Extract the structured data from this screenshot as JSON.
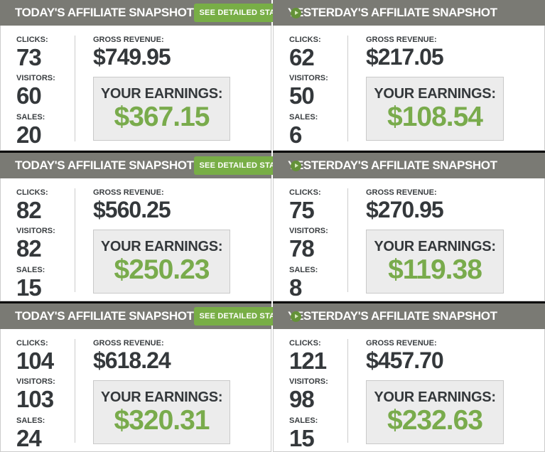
{
  "labels": {
    "clicks": "CLICKS:",
    "visitors": "VISITORS:",
    "sales": "SALES:",
    "gross_revenue": "GROSS REVENUE:",
    "your_earnings": "YOUR EARNINGS:",
    "see_detailed_stats": "SEE DETAILED STATS"
  },
  "colors": {
    "header_bg": "#7a7a74",
    "button_green": "#78ae46",
    "earnings_green": "#79ab4c",
    "dark_text": "#34383b",
    "box_bg": "#ececec",
    "border_light": "#cccccc",
    "row_separator": "#0a0a0a"
  },
  "panels": [
    {
      "title": "TODAY'S AFFILIATE SNAPSHOT",
      "stats": {
        "clicks": "73",
        "visitors": "60",
        "sales": "20"
      },
      "gross_revenue": "$749.95",
      "earnings": "$367.15"
    },
    {
      "title": "YESTERDAY'S AFFILIATE SNAPSHOT",
      "stats": {
        "clicks": "62",
        "visitors": "50",
        "sales": "6"
      },
      "gross_revenue": "$217.05",
      "earnings": "$108.54"
    },
    {
      "title": "TODAY'S AFFILIATE SNAPSHOT",
      "stats": {
        "clicks": "82",
        "visitors": "82",
        "sales": "15"
      },
      "gross_revenue": "$560.25",
      "earnings": "$250.23"
    },
    {
      "title": "YESTERDAY'S AFFILIATE SNAPSHOT",
      "stats": {
        "clicks": "75",
        "visitors": "78",
        "sales": "8"
      },
      "gross_revenue": "$270.95",
      "earnings": "$119.38"
    },
    {
      "title": "TODAY'S AFFILIATE SNAPSHOT",
      "stats": {
        "clicks": "104",
        "visitors": "103",
        "sales": "24"
      },
      "gross_revenue": "$618.24",
      "earnings": "$320.31"
    },
    {
      "title": "YESTERDAY'S AFFILIATE SNAPSHOT",
      "stats": {
        "clicks": "121",
        "visitors": "98",
        "sales": "15"
      },
      "gross_revenue": "$457.70",
      "earnings": "$232.63"
    }
  ]
}
